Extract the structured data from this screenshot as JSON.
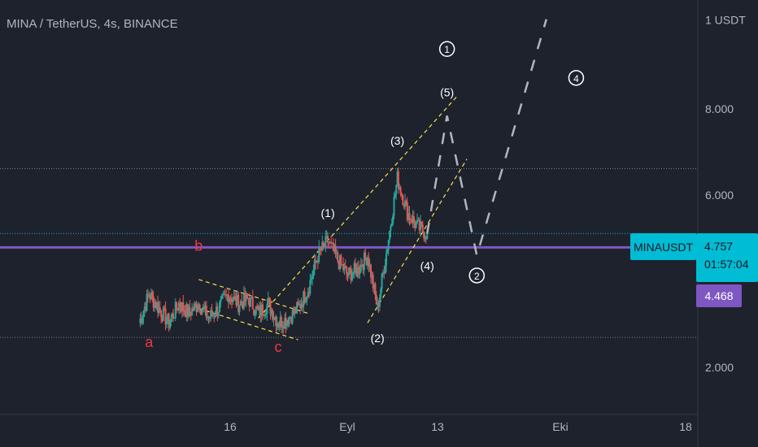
{
  "header": {
    "title": "MINA / TetherUS, 4s, BINANCE"
  },
  "price_tag": {
    "symbol": "MINAUSDT",
    "price": "4.757",
    "countdown": "01:57:04"
  },
  "level_tag": {
    "value": "4.468"
  },
  "colors": {
    "background": "#1e222d",
    "accent_cyan": "#00bcd4",
    "level_purple": "#7e57c2",
    "channel_yellow": "#f7e24a",
    "label_red": "#f23645",
    "projection_gray": "#b2b5be"
  },
  "chart_data": {
    "type": "candlestick",
    "ylim": [
      2.0,
      8.8
    ],
    "y_ticks": [
      "1 USDT",
      "8.000",
      "6.000",
      "2.000"
    ],
    "x_ticks": [
      "16",
      "Eyl",
      "13",
      "Eki",
      "18"
    ],
    "horizontal_levels": [
      6.1,
      4.757,
      4.468,
      2.6
    ],
    "price_series": [
      [
        0,
        2.9
      ],
      [
        1,
        3.5
      ],
      [
        2,
        3.2
      ],
      [
        3,
        2.9
      ],
      [
        4,
        3.3
      ],
      [
        5,
        3.1
      ],
      [
        6,
        3.3
      ],
      [
        7,
        3.0
      ],
      [
        8,
        3.2
      ],
      [
        9,
        3.5
      ],
      [
        10,
        3.3
      ],
      [
        11,
        3.4
      ],
      [
        12,
        3.1
      ],
      [
        13,
        3.3
      ],
      [
        14,
        2.9
      ],
      [
        15,
        3.0
      ],
      [
        16,
        3.2
      ],
      [
        17,
        3.6
      ],
      [
        18,
        4.3
      ],
      [
        19,
        4.6
      ],
      [
        20,
        4.2
      ],
      [
        21,
        3.9
      ],
      [
        22,
        4.0
      ],
      [
        23,
        4.3
      ],
      [
        24,
        3.2
      ],
      [
        25,
        4.5
      ],
      [
        26,
        5.9
      ],
      [
        27,
        5.2
      ],
      [
        28,
        4.9
      ],
      [
        29,
        4.75
      ]
    ],
    "wave_labels": [
      {
        "text": "a",
        "x": 1,
        "y": 2.4,
        "color": "red"
      },
      {
        "text": "b",
        "x": 6,
        "y": 4.4,
        "color": "red"
      },
      {
        "text": "c",
        "x": 14,
        "y": 2.3,
        "color": "red"
      },
      {
        "text": "(1)",
        "x": 19,
        "y": 5.1,
        "color": "white"
      },
      {
        "text": "(2)",
        "x": 24,
        "y": 2.5,
        "color": "white"
      },
      {
        "text": "(3)",
        "x": 26,
        "y": 6.6,
        "color": "white"
      },
      {
        "text": "(4)",
        "x": 29,
        "y": 4.0,
        "color": "white"
      },
      {
        "text": "(5)",
        "x": 31,
        "y": 7.6,
        "color": "white"
      },
      {
        "text": "1",
        "x": 31,
        "y": 8.5,
        "color": "white",
        "circled": true
      },
      {
        "text": "2",
        "x": 34,
        "y": 3.8,
        "color": "white",
        "circled": true
      },
      {
        "text": "4",
        "x": 44,
        "y": 7.9,
        "color": "white",
        "circled": true
      }
    ],
    "channels": [
      {
        "name": "wedge-upper",
        "points": [
          [
            6,
            3.8
          ],
          [
            17,
            3.1
          ]
        ]
      },
      {
        "name": "wedge-lower",
        "points": [
          [
            6,
            3.2
          ],
          [
            16,
            2.55
          ]
        ]
      },
      {
        "name": "channel-upper",
        "points": [
          [
            12,
            3.0
          ],
          [
            32,
            7.6
          ]
        ]
      },
      {
        "name": "channel-lower",
        "points": [
          [
            23,
            2.9
          ],
          [
            33,
            6.3
          ]
        ]
      }
    ],
    "projection": [
      [
        29,
        4.75
      ],
      [
        31,
        7.2
      ],
      [
        34,
        4.3
      ],
      [
        41,
        9.2
      ]
    ]
  }
}
